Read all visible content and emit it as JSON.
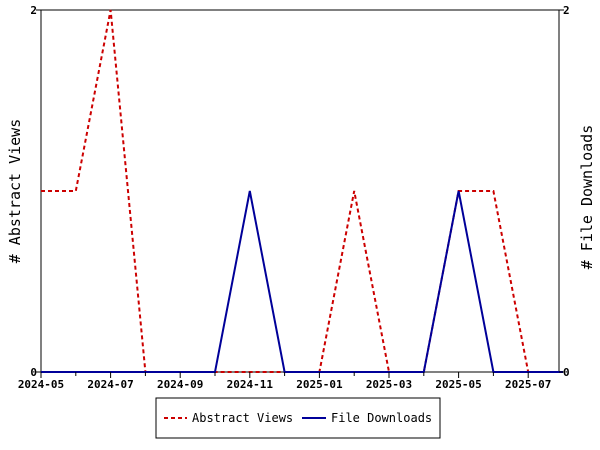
{
  "chart_data": {
    "type": "line",
    "x": [
      "2024-05",
      "2024-06",
      "2024-07",
      "2024-08",
      "2024-09",
      "2024-10",
      "2024-11",
      "2024-12",
      "2025-01",
      "2025-02",
      "2025-03",
      "2025-04",
      "2025-05",
      "2025-06",
      "2025-07",
      "2025-08"
    ],
    "xticks": [
      "2024-05",
      "2024-07",
      "2024-09",
      "2024-11",
      "2025-01",
      "2025-03",
      "2025-05",
      "2025-07"
    ],
    "series": [
      {
        "name": "Abstract Views",
        "axis": "left",
        "color": "#cc0000",
        "dash": "dashed",
        "values": [
          1,
          1,
          2,
          0,
          0,
          0,
          0,
          0,
          0,
          1,
          0,
          0,
          1,
          1,
          0,
          0
        ]
      },
      {
        "name": "File Downloads",
        "axis": "right",
        "color": "#000099",
        "dash": "solid",
        "values": [
          0,
          0,
          0,
          0,
          0,
          0,
          1,
          0,
          0,
          0,
          0,
          0,
          1,
          0,
          0,
          0
        ]
      }
    ],
    "ylabel": "# Abstract Views",
    "y2label": "# File Downloads",
    "ylim": [
      0,
      2
    ],
    "y2lim": [
      0,
      2
    ],
    "yticks": [
      0,
      2
    ],
    "y2ticks": [
      0,
      2
    ],
    "grid": false,
    "legend_position": "bottom"
  }
}
